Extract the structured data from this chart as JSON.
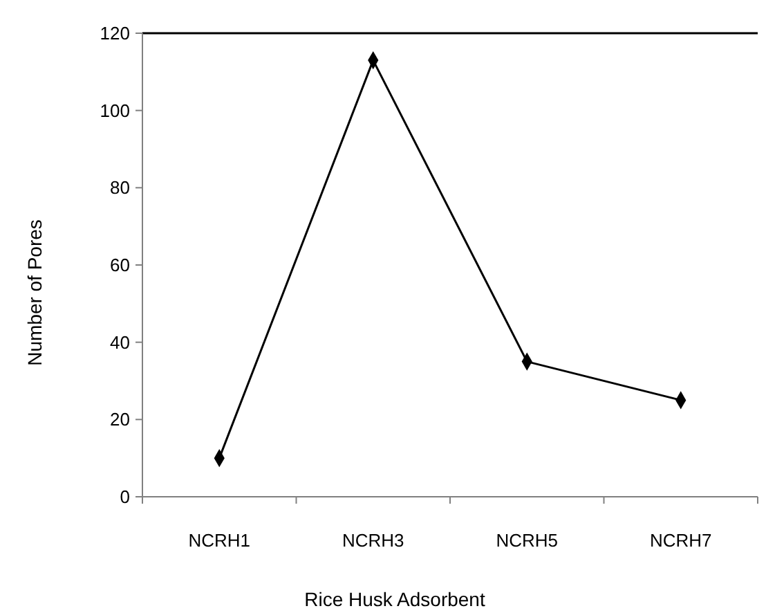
{
  "chart_data": {
    "type": "line",
    "xlabel": "Rice Husk Adsorbent",
    "ylabel": "Number of Pores",
    "categories": [
      "NCRH1",
      "NCRH3",
      "NCRH5",
      "NCRH7"
    ],
    "series": [
      {
        "color": "#000000",
        "values": [
          10,
          113,
          35,
          25
        ]
      }
    ],
    "ylim": [
      0,
      120
    ],
    "yticks": [
      0,
      20,
      40,
      60,
      80,
      100,
      120
    ],
    "marker": "diamond"
  }
}
